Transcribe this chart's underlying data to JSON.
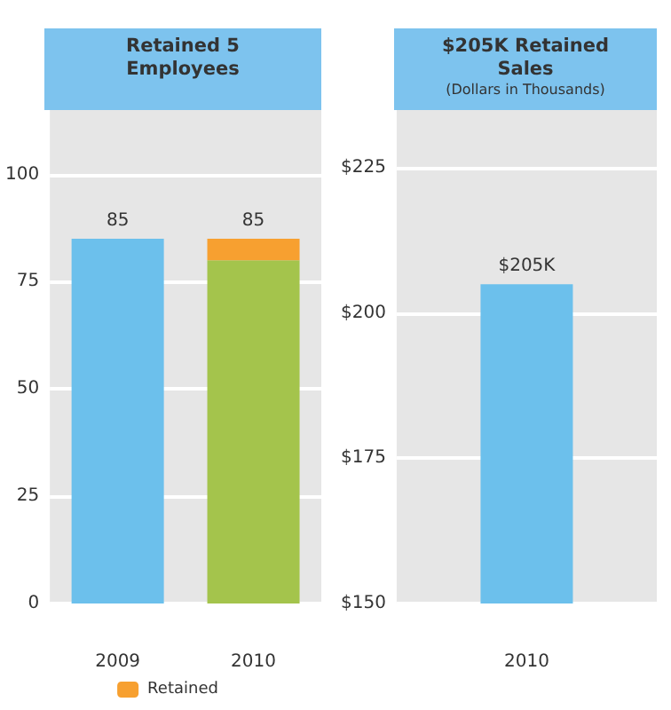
{
  "chart_data": [
    {
      "type": "bar",
      "title": "Retained 5 Employees",
      "categories": [
        "2009",
        "2010"
      ],
      "stacked": true,
      "series": [
        {
          "colors": [
            "#6cc0ec",
            "#a4c44c"
          ],
          "values": [
            85,
            80
          ]
        },
        {
          "name": "Retained",
          "color": "#f7a030",
          "values": [
            null,
            5
          ]
        }
      ],
      "totals": [
        "85",
        "85"
      ],
      "ylim": [
        0,
        115
      ],
      "yticks": [
        0,
        25,
        50,
        75,
        100
      ],
      "grid": "y",
      "legend": "bottom"
    },
    {
      "type": "bar",
      "title": "$205K Retained Sales",
      "subtitle": "(Dollars in Thousands)",
      "categories": [
        "2010"
      ],
      "series": [
        {
          "color": "#6cc0ec",
          "values": [
            205
          ],
          "value_labels": [
            "$205K"
          ]
        }
      ],
      "ylim": [
        150,
        235
      ],
      "yticks": [
        {
          "value": 150,
          "label": "$150"
        },
        {
          "value": 175,
          "label": "$175"
        },
        {
          "value": 200,
          "label": "$200"
        },
        {
          "value": 225,
          "label": "$225"
        }
      ],
      "grid": "y"
    }
  ]
}
